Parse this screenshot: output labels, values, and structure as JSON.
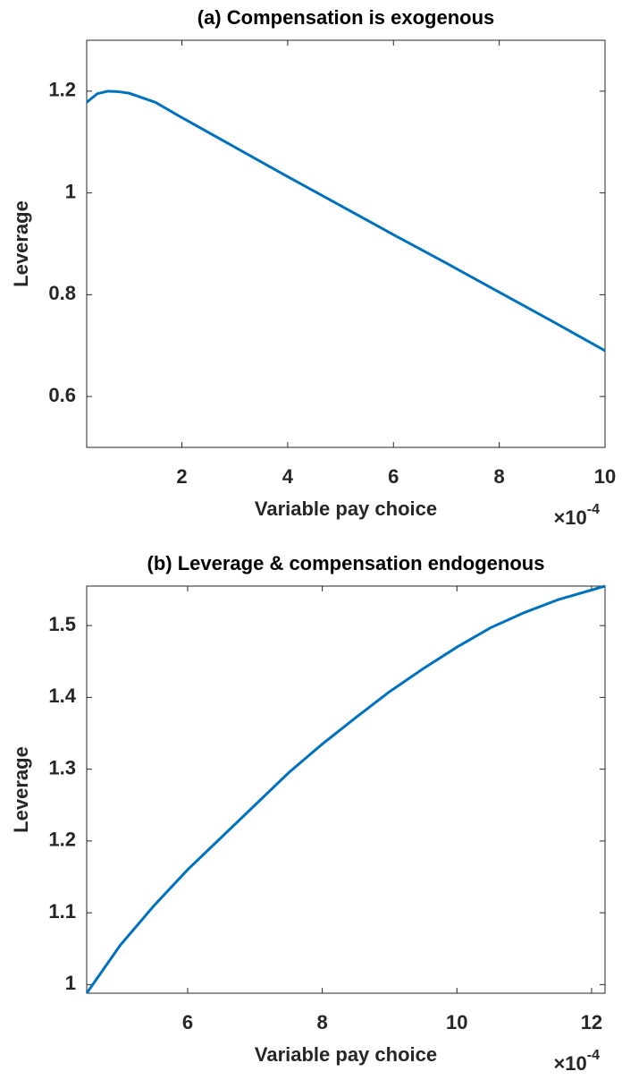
{
  "chart_data": [
    {
      "type": "line",
      "title": "(a) Compensation is exogenous",
      "xlabel": "Variable pay choice",
      "ylabel": "Leverage",
      "x_multiplier": "×10",
      "x_exponent": "-4",
      "x": [
        0.2,
        0.4,
        0.6,
        0.8,
        1,
        1.5,
        2,
        3,
        4,
        5,
        6,
        7,
        8,
        9,
        10
      ],
      "series": [
        {
          "color": "#0072bd",
          "values": [
            1.178,
            1.195,
            1.2,
            1.199,
            1.196,
            1.178,
            1.148,
            1.09,
            1.032,
            0.975,
            0.918,
            0.862,
            0.805,
            0.748,
            0.69
          ]
        }
      ],
      "xlim": [
        0.2,
        10
      ],
      "ylim": [
        0.5,
        1.3
      ],
      "xticks": [
        2,
        4,
        6,
        8,
        10
      ],
      "yticks": [
        0.6,
        0.8,
        1,
        1.2
      ]
    },
    {
      "type": "line",
      "title": "(b) Leverage & compensation endogenous",
      "xlabel": "Variable pay choice",
      "ylabel": "Leverage",
      "x_multiplier": "×10",
      "x_exponent": "-4",
      "x": [
        4.5,
        5,
        5.5,
        6,
        6.5,
        7,
        7.5,
        8,
        8.5,
        9,
        9.5,
        10,
        10.5,
        11,
        11.5,
        12.2
      ],
      "series": [
        {
          "color": "#0072bd",
          "values": [
            0.988,
            1.055,
            1.11,
            1.16,
            1.205,
            1.25,
            1.295,
            1.335,
            1.372,
            1.408,
            1.44,
            1.47,
            1.497,
            1.518,
            1.536,
            1.555
          ]
        }
      ],
      "xlim": [
        4.5,
        12.2
      ],
      "ylim": [
        0.988,
        1.555
      ],
      "xticks": [
        6,
        8,
        10,
        12
      ],
      "yticks": [
        1,
        1.1,
        1.2,
        1.3,
        1.4,
        1.5
      ]
    }
  ]
}
